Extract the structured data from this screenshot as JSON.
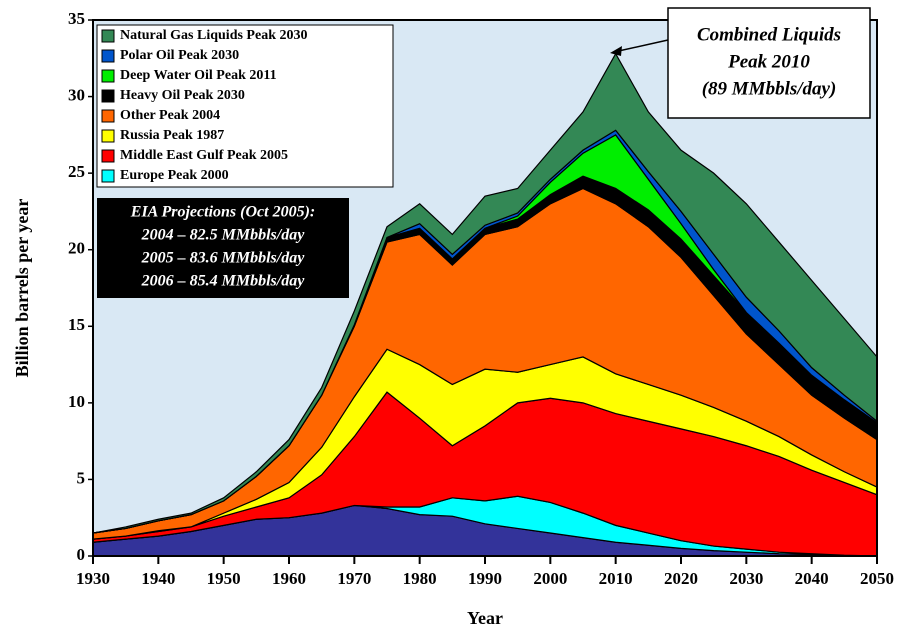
{
  "chart_data": {
    "type": "stacked_area",
    "x_label": "Year",
    "y_label": "Billion barrels per  year",
    "x": [
      1930,
      1935,
      1940,
      1945,
      1950,
      1955,
      1960,
      1965,
      1970,
      1975,
      1980,
      1985,
      1990,
      1995,
      2000,
      2005,
      2010,
      2015,
      2020,
      2025,
      2030,
      2035,
      2040,
      2045,
      2050
    ],
    "series": [
      {
        "color": "#33339a",
        "values": [
          0.9,
          1.1,
          1.3,
          1.6,
          2.0,
          2.4,
          2.5,
          2.8,
          3.3,
          3.1,
          2.7,
          2.6,
          2.1,
          1.8,
          1.5,
          1.2,
          0.9,
          0.7,
          0.5,
          0.35,
          0.25,
          0.15,
          0.1,
          0.05,
          0
        ]
      },
      {
        "name": "Europe Peak 2000",
        "color": "#00ffff",
        "values": [
          0,
          0,
          0,
          0,
          0,
          0,
          0,
          0,
          0,
          0.1,
          0.5,
          1.2,
          1.5,
          2.1,
          2.0,
          1.6,
          1.1,
          0.8,
          0.5,
          0.3,
          0.2,
          0.1,
          0.05,
          0,
          0
        ]
      },
      {
        "name": "Middle East Gulf Peak 2005",
        "color": "#ff0000",
        "values": [
          0.2,
          0.2,
          0.3,
          0.3,
          0.6,
          0.8,
          1.3,
          2.5,
          4.5,
          7.5,
          5.8,
          3.4,
          4.9,
          6.1,
          6.8,
          7.2,
          7.3,
          7.3,
          7.3,
          7.15,
          6.75,
          6.25,
          5.45,
          4.75,
          4.0
        ]
      },
      {
        "name": "Russia Peak 1987",
        "color": "#ffff00",
        "values": [
          0,
          0,
          0.05,
          0,
          0.2,
          0.5,
          1.0,
          1.8,
          2.6,
          2.8,
          3.5,
          4.0,
          3.7,
          2.0,
          2.2,
          3.0,
          2.6,
          2.4,
          2.2,
          1.9,
          1.6,
          1.3,
          1.0,
          0.7,
          0.5
        ]
      },
      {
        "name": "Other Peak 2004",
        "color": "#ff6600",
        "values": [
          0.4,
          0.5,
          0.65,
          0.8,
          0.8,
          1.5,
          2.4,
          3.4,
          4.6,
          7.0,
          8.5,
          7.8,
          8.8,
          9.5,
          10.5,
          11,
          11.1,
          10.3,
          9,
          7.3,
          5.7,
          4.7,
          3.9,
          3.5,
          3.1
        ]
      },
      {
        "name": "Heavy Oil Peak 2030",
        "color": "#000000",
        "values": [
          0,
          0,
          0,
          0,
          0,
          0,
          0,
          0,
          0.1,
          0.3,
          0.4,
          0.4,
          0.4,
          0.5,
          0.6,
          0.8,
          1.0,
          1.1,
          1.2,
          1.3,
          1.4,
          1.4,
          1.3,
          1.2,
          1.1
        ]
      },
      {
        "name": "Deep Water Oil Peak 2011",
        "color": "#00ee00",
        "values": [
          0,
          0,
          0,
          0,
          0,
          0,
          0,
          0,
          0,
          0,
          0,
          0,
          0,
          0.2,
          0.8,
          1.5,
          3.5,
          2.0,
          1.0,
          0.4,
          0,
          0,
          0,
          0,
          0
        ]
      },
      {
        "name": "Polar Oil Peak 2030",
        "color": "#0055cc",
        "values": [
          0,
          0,
          0,
          0,
          0,
          0,
          0,
          0,
          0,
          0,
          0.3,
          0.3,
          0.2,
          0.2,
          0.2,
          0.2,
          0.3,
          0.5,
          0.8,
          1.0,
          1.0,
          0.8,
          0.5,
          0.3,
          0.1
        ]
      },
      {
        "name": "Natural Gas Liquids Peak 2030",
        "color": "#338855",
        "values": [
          0,
          0.1,
          0.1,
          0.1,
          0.2,
          0.3,
          0.4,
          0.5,
          0.9,
          0.7,
          1.3,
          1.3,
          1.9,
          1.6,
          1.9,
          2.5,
          5.0,
          3.9,
          4.0,
          5.3,
          6.1,
          5.8,
          5.7,
          5.0,
          4.2
        ]
      }
    ],
    "xlim": [
      1930,
      2050
    ],
    "xticks": [
      1930,
      1940,
      1950,
      1960,
      1970,
      1980,
      1990,
      2000,
      2010,
      2020,
      2030,
      2040,
      2050
    ],
    "ylim": [
      0,
      35
    ],
    "yticks": [
      0,
      5,
      10,
      15,
      20,
      25,
      30,
      35
    ],
    "annotations": [
      {
        "lines": [
          "Combined Liquids",
          "Peak 2010",
          "(89 MMbbls/day)"
        ]
      },
      {
        "lines": [
          "EIA Projections (Oct 2005):",
          "2004 – 82.5 MMbbls/day",
          "2005 – 83.6 MMbbls/day",
          "2006 – 85.4 MMbbls/day"
        ]
      }
    ]
  }
}
